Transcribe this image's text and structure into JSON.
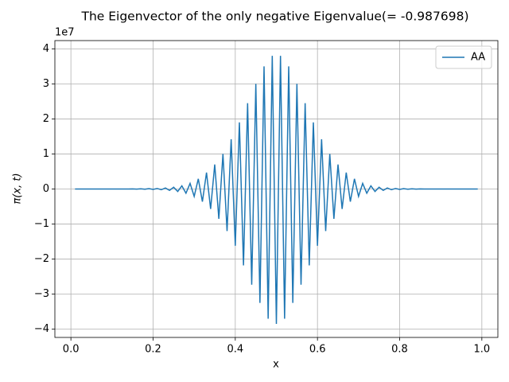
{
  "chart_data": {
    "type": "line",
    "title": "The Eigenvector of the only negative Eigenvalue(= -0.987698)",
    "x_label": "x",
    "y_label": "π(x, t)",
    "y_offset_label": "1e7",
    "x": [
      0.01,
      0.02,
      0.03,
      0.04,
      0.05,
      0.06,
      0.07,
      0.08,
      0.09,
      0.1,
      0.11,
      0.12,
      0.13,
      0.14,
      0.15,
      0.16,
      0.17,
      0.18,
      0.19,
      0.2,
      0.21,
      0.22,
      0.23,
      0.24,
      0.25,
      0.26,
      0.27,
      0.28,
      0.29,
      0.3,
      0.31,
      0.32,
      0.33,
      0.34,
      0.35,
      0.36,
      0.37,
      0.38,
      0.39,
      0.4,
      0.41,
      0.42,
      0.43,
      0.44,
      0.45,
      0.46,
      0.47,
      0.48,
      0.49,
      0.5,
      0.51,
      0.52,
      0.53,
      0.54,
      0.55,
      0.56,
      0.57,
      0.58,
      0.59,
      0.6,
      0.61,
      0.62,
      0.63,
      0.64,
      0.65,
      0.66,
      0.67,
      0.68,
      0.69,
      0.7,
      0.71,
      0.72,
      0.73,
      0.74,
      0.75,
      0.76,
      0.77,
      0.78,
      0.79,
      0.8,
      0.81,
      0.82,
      0.83,
      0.84,
      0.85,
      0.86,
      0.87,
      0.88,
      0.89,
      0.9,
      0.91,
      0.92,
      0.93,
      0.94,
      0.95,
      0.96,
      0.97,
      0.98,
      0.99
    ],
    "series": [
      {
        "name": "AA",
        "color": "#1f77b4",
        "values": [
          0,
          0,
          0,
          0,
          0,
          0,
          0,
          0,
          0,
          0,
          0,
          0,
          0,
          -0.001,
          0.002,
          -0.003,
          0.005,
          -0.005,
          0.01,
          -0.01,
          0.015,
          -0.02,
          0.03,
          -0.04,
          0.05,
          -0.07,
          0.09,
          -0.12,
          0.16,
          -0.21,
          0.29,
          -0.36,
          0.47,
          -0.57,
          0.7,
          -0.85,
          1.0,
          -1.2,
          1.42,
          -1.62,
          1.9,
          -2.18,
          2.45,
          -2.73,
          3.0,
          -3.25,
          3.5,
          -3.7,
          3.8,
          -3.85,
          3.8,
          -3.7,
          3.5,
          -3.25,
          3.0,
          -2.73,
          2.45,
          -2.18,
          1.9,
          -1.62,
          1.42,
          -1.2,
          1.0,
          -0.85,
          0.7,
          -0.57,
          0.47,
          -0.36,
          0.29,
          -0.21,
          0.16,
          -0.12,
          0.09,
          -0.07,
          0.05,
          -0.04,
          0.03,
          -0.02,
          0.015,
          -0.01,
          0.01,
          -0.005,
          0.005,
          -0.003,
          0.002,
          -0.001,
          0,
          0,
          0,
          0,
          0,
          0,
          0,
          0,
          0,
          0,
          0,
          0,
          0
        ]
      }
    ],
    "xlim": [
      -0.039,
      1.039
    ],
    "ylim": [
      -4.235,
      4.235
    ],
    "xticks": [
      {
        "value": 0,
        "label": "0.0"
      },
      0.2,
      0.4,
      0.6,
      0.8,
      {
        "value": 1,
        "label": "1.0"
      }
    ],
    "yticks": [
      {
        "value": -4,
        "label": "−4"
      },
      {
        "value": -3,
        "label": "−3"
      },
      {
        "value": -2,
        "label": "−2"
      },
      {
        "value": -1,
        "label": "−1"
      },
      0,
      1,
      2,
      3,
      4
    ],
    "grid": true,
    "legend": "upper-right"
  }
}
